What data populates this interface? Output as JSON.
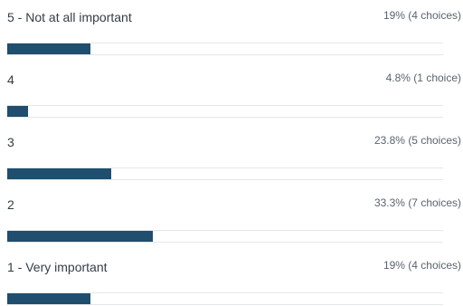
{
  "colors": {
    "bar_fill": "#1f4e6e",
    "track_line": "#e4e7ea",
    "label_text": "#333d47",
    "stat_text": "#5a646e"
  },
  "options": [
    {
      "label": "5 - Not at all important",
      "stat": "19% (4 choices)",
      "fraction": 0.19
    },
    {
      "label": "4",
      "stat": "4.8% (1 choice)",
      "fraction": 0.048
    },
    {
      "label": "3",
      "stat": "23.8% (5 choices)",
      "fraction": 0.238
    },
    {
      "label": "2",
      "stat": "33.3% (7 choices)",
      "fraction": 0.333
    },
    {
      "label": "1 - Very important",
      "stat": "19% (4 choices)",
      "fraction": 0.19
    }
  ]
}
